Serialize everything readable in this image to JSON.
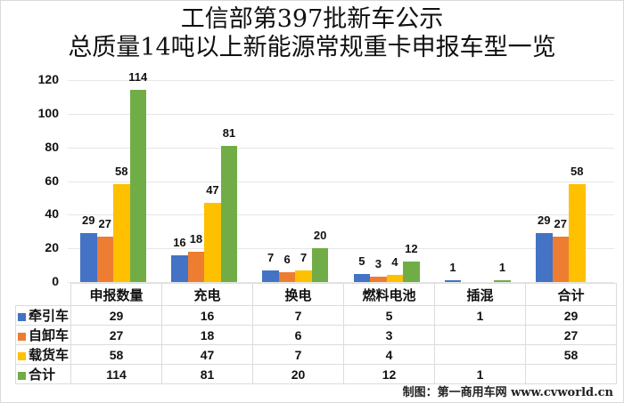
{
  "title": {
    "line1": "工信部第397批新车公示",
    "line2": "总质量14吨以上新能源常规重卡申报车型一览"
  },
  "colors": {
    "牵引车": "#4472c4",
    "自卸车": "#ed7d31",
    "载货车": "#ffc000",
    "合计": "#70ad47"
  },
  "chart_data": {
    "type": "bar",
    "title": "工信部第397批新车公示 总质量14吨以上新能源常规重卡申报车型一览",
    "xlabel": "",
    "ylabel": "",
    "ylim": [
      0,
      120
    ],
    "yticks": [
      0,
      20,
      40,
      60,
      80,
      100,
      120
    ],
    "grid": true,
    "legend_position": "data-table",
    "categories": [
      "申报数量",
      "充电",
      "换电",
      "燃料电池",
      "插混",
      "合计"
    ],
    "series": [
      {
        "name": "牵引车",
        "color": "#4472c4",
        "values": [
          29,
          16,
          7,
          5,
          1,
          29
        ]
      },
      {
        "name": "自卸车",
        "color": "#ed7d31",
        "values": [
          27,
          18,
          6,
          3,
          null,
          27
        ]
      },
      {
        "name": "载货车",
        "color": "#ffc000",
        "values": [
          58,
          47,
          7,
          4,
          null,
          58
        ]
      },
      {
        "name": "合计",
        "color": "#70ad47",
        "values": [
          114,
          81,
          20,
          12,
          1,
          null
        ]
      }
    ]
  },
  "table": {
    "headers": [
      "申报数量",
      "充电",
      "换电",
      "燃料电池",
      "插混",
      "合计"
    ],
    "rows": [
      {
        "label": "牵引车",
        "cells": [
          "29",
          "16",
          "7",
          "5",
          "1",
          "29"
        ]
      },
      {
        "label": "自卸车",
        "cells": [
          "27",
          "18",
          "6",
          "3",
          "",
          "27"
        ]
      },
      {
        "label": "载货车",
        "cells": [
          "58",
          "47",
          "7",
          "4",
          "",
          "58"
        ]
      },
      {
        "label": "合计",
        "cells": [
          "114",
          "81",
          "20",
          "12",
          "1",
          ""
        ]
      }
    ]
  },
  "credit": "制图：第一商用车网 www.cvworld.cn"
}
